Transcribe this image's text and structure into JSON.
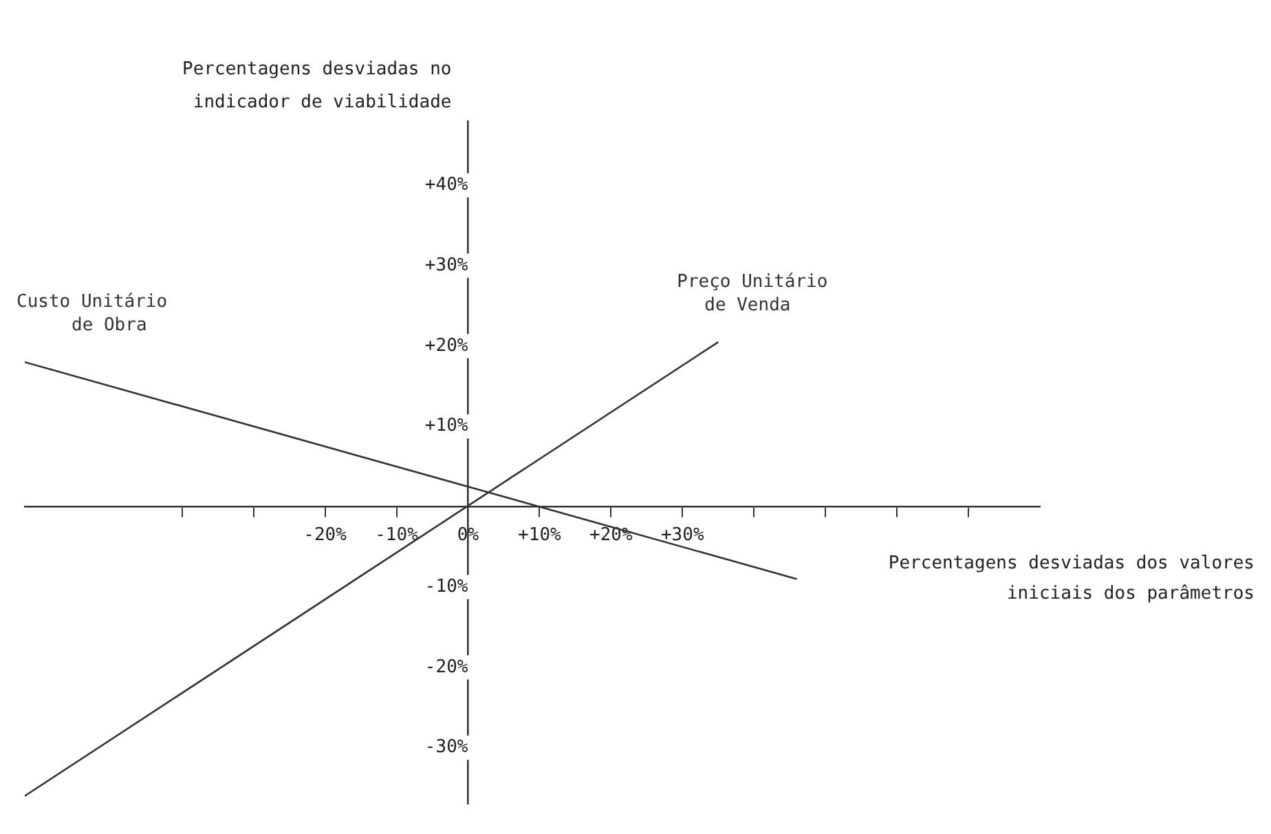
{
  "chart_data": {
    "type": "line",
    "xlabel": "Percentagens desviadas dos valores iniciais dos parâmetros",
    "ylabel": "Percentagens desviadas no indicador de viabilidade",
    "xlim": [
      -62,
      80
    ],
    "ylim": [
      -37,
      48
    ],
    "xticks": [
      {
        "value": -40,
        "label": null
      },
      {
        "value": -30,
        "label": null
      },
      {
        "value": -20,
        "label": "-20%"
      },
      {
        "value": -10,
        "label": "-10%"
      },
      {
        "value": 0,
        "label": "0%"
      },
      {
        "value": 10,
        "label": "+10%"
      },
      {
        "value": 20,
        "label": "+20%"
      },
      {
        "value": 30,
        "label": "+30%"
      },
      {
        "value": 40,
        "label": null
      },
      {
        "value": 50,
        "label": null
      },
      {
        "value": 60,
        "label": null
      },
      {
        "value": 70,
        "label": null
      }
    ],
    "yticks": [
      {
        "value": -30,
        "label": "-30%"
      },
      {
        "value": -20,
        "label": "-20%"
      },
      {
        "value": -10,
        "label": "-10%"
      },
      {
        "value": 10,
        "label": "+10%"
      },
      {
        "value": 20,
        "label": "+20%"
      },
      {
        "value": 30,
        "label": "+30%"
      },
      {
        "value": 40,
        "label": "+40%"
      }
    ],
    "grid": false,
    "legend": false,
    "marker": "none",
    "line_style": "solid",
    "series": [
      {
        "name": "Custo Unitário de Obra",
        "color": "#333333",
        "x": [
          -62,
          46
        ],
        "values": [
          18,
          -9
        ]
      },
      {
        "name": "Preço Unitário de Venda",
        "color": "#333333",
        "x": [
          -62,
          35
        ],
        "values": [
          -36,
          20.5
        ]
      }
    ]
  }
}
